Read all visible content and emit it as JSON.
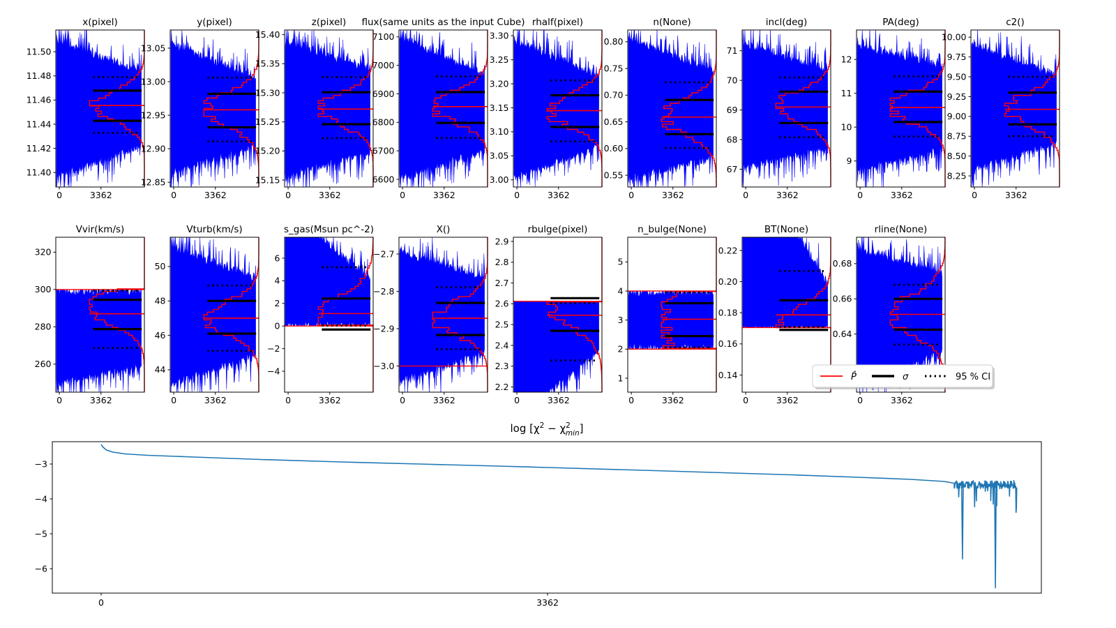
{
  "figure": {
    "background": "#ffffff"
  },
  "colors": {
    "trace": "#0000ff",
    "posterior": "#ff0000",
    "stat": "#000000",
    "chi2_line": "#1f77b4",
    "legend_edge": "#cccccc",
    "legend_shadow": "#b0b0b0"
  },
  "legend": {
    "items": [
      {
        "label": "P̂",
        "style": "red-line"
      },
      {
        "label": "σ",
        "style": "black-line"
      },
      {
        "label": "95 % CI",
        "style": "black-dotted"
      }
    ]
  },
  "chart_data": {
    "type": "line",
    "description": "Grid of MCMC/PSO parameter trace plots (blue sample traces, red marginal posterior P-hat, black sigma intervals, dotted 95% CI) plus bottom log chi2 convergence curve",
    "x_tick_labels": [
      "0",
      "3362"
    ],
    "panels": [
      {
        "title": "x(pixel)",
        "row": 0,
        "col": 0,
        "ylim": [
          11.388,
          11.518
        ],
        "ytick_vals": [
          11.4,
          11.42,
          11.44,
          11.46,
          11.48,
          11.5
        ],
        "ytick_labels": [
          "11.40",
          "11.42",
          "11.44",
          "11.46",
          "11.48",
          "11.50"
        ],
        "median": 11.4555,
        "sigma": [
          11.4428,
          11.4678
        ],
        "ci": [
          11.4328,
          11.479
        ],
        "env_top": [
          11.512,
          11.486
        ],
        "env_bot": [
          11.394,
          11.42
        ],
        "post_sigma": 0.0125
      },
      {
        "title": "y(pixel)",
        "row": 0,
        "col": 1,
        "ylim": [
          12.843,
          13.077
        ],
        "ytick_vals": [
          12.85,
          12.9,
          12.95,
          13.0,
          13.05
        ],
        "ytick_labels": [
          "12.85",
          "12.90",
          "12.95",
          "13.00",
          "13.05"
        ],
        "median": 12.958,
        "sigma": [
          12.932,
          12.982
        ],
        "ci": [
          12.911,
          13.006
        ],
        "env_top": [
          13.062,
          13.008
        ],
        "env_bot": [
          12.86,
          12.9
        ],
        "post_sigma": 0.025
      },
      {
        "title": "z(pixel)",
        "row": 0,
        "col": 2,
        "ylim": [
          15.138,
          15.408
        ],
        "ytick_vals": [
          15.15,
          15.2,
          15.25,
          15.3,
          15.35,
          15.4
        ],
        "ytick_labels": [
          "15.15",
          "15.20",
          "15.25",
          "15.30",
          "15.35",
          "15.40"
        ],
        "median": 15.272,
        "sigma": [
          15.246,
          15.301
        ],
        "ci": [
          15.222,
          15.327
        ],
        "env_top": [
          15.393,
          15.345
        ],
        "env_bot": [
          15.15,
          15.192
        ],
        "post_sigma": 0.027
      },
      {
        "title": "flux(same units as the input Cube)",
        "row": 0,
        "col": 3,
        "ylim": [
          6573,
          7124
        ],
        "ytick_vals": [
          6600,
          6700,
          6800,
          6900,
          7000,
          7100
        ],
        "ytick_labels": [
          "6600",
          "6700",
          "6800",
          "6900",
          "7000",
          "7100"
        ],
        "median": 6855,
        "sigma": [
          6798,
          6906
        ],
        "ci": [
          6745,
          6961
        ],
        "env_top": [
          7108,
          6978
        ],
        "env_bot": [
          6595,
          6692
        ],
        "post_sigma": 54
      },
      {
        "title": "rhalf(pixel)",
        "row": 0,
        "col": 4,
        "ylim": [
          2.985,
          3.312
        ],
        "ytick_vals": [
          3.0,
          3.05,
          3.1,
          3.15,
          3.2,
          3.25,
          3.3
        ],
        "ytick_labels": [
          "3.00",
          "3.05",
          "3.10",
          "3.15",
          "3.20",
          "3.25",
          "3.30"
        ],
        "median": 3.144,
        "sigma": [
          3.11,
          3.176
        ],
        "ci": [
          3.08,
          3.207
        ],
        "env_top": [
          3.298,
          3.222
        ],
        "env_bot": [
          2.998,
          3.062
        ],
        "post_sigma": 0.033
      },
      {
        "title": "n(None)",
        "row": 0,
        "col": 5,
        "ylim": [
          0.528,
          0.822
        ],
        "ytick_vals": [
          0.55,
          0.6,
          0.65,
          0.7,
          0.75,
          0.8
        ],
        "ytick_labels": [
          "0.55",
          "0.60",
          "0.65",
          "0.70",
          "0.75",
          "0.80"
        ],
        "median": 0.659,
        "sigma": [
          0.627,
          0.691
        ],
        "ci": [
          0.601,
          0.724
        ],
        "env_top": [
          0.812,
          0.752
        ],
        "env_bot": [
          0.54,
          0.576
        ],
        "post_sigma": 0.032
      },
      {
        "title": "incl(deg)",
        "row": 0,
        "col": 6,
        "ylim": [
          66.4,
          71.7
        ],
        "ytick_vals": [
          67,
          68,
          69,
          70,
          71
        ],
        "ytick_labels": [
          "67",
          "68",
          "69",
          "70",
          "71"
        ],
        "median": 69.1,
        "sigma": [
          68.56,
          69.62
        ],
        "ci": [
          68.08,
          70.1
        ],
        "env_top": [
          71.35,
          70.45
        ],
        "env_bot": [
          66.95,
          67.6
        ],
        "post_sigma": 0.53
      },
      {
        "title": "PA(deg)",
        "row": 0,
        "col": 7,
        "ylim": [
          8.23,
          12.87
        ],
        "ytick_vals": [
          9,
          10,
          11,
          12
        ],
        "ytick_labels": [
          "9",
          "10",
          "11",
          "12"
        ],
        "median": 10.58,
        "sigma": [
          10.15,
          11.05
        ],
        "ci": [
          9.72,
          11.5
        ],
        "env_top": [
          12.5,
          11.92
        ],
        "env_bot": [
          8.65,
          9.25
        ],
        "post_sigma": 0.45
      },
      {
        "title": "c2()",
        "row": 0,
        "col": 8,
        "ylim": [
          8.11,
          10.09
        ],
        "ytick_vals": [
          8.25,
          8.5,
          8.75,
          9.0,
          9.25,
          9.5,
          9.75,
          10.0
        ],
        "ytick_labels": [
          "8.25",
          "8.50",
          "8.75",
          "9.00",
          "9.25",
          "9.50",
          "9.75",
          "10.00"
        ],
        "median": 9.09,
        "sigma": [
          8.9,
          9.3
        ],
        "ci": [
          8.75,
          9.5
        ],
        "env_top": [
          9.95,
          9.56
        ],
        "env_bot": [
          8.3,
          8.62
        ],
        "post_sigma": 0.2
      },
      {
        "title": "Vvir(km/s)",
        "row": 1,
        "col": 0,
        "ylim": [
          245,
          328
        ],
        "ytick_vals": [
          260,
          280,
          300,
          320
        ],
        "ytick_labels": [
          "260",
          "280",
          "300",
          "320"
        ],
        "median": 287,
        "sigma": [
          278.8,
          294.5
        ],
        "ci": [
          268.7,
          299.4
        ],
        "env_top": [
          300.6,
          300.6
        ],
        "env_bot": [
          248,
          257.5
        ],
        "bound_top": 300,
        "hlines": [
          300
        ],
        "post_center": 290,
        "post_sigma": 9
      },
      {
        "title": "Vturb(km/s)",
        "row": 1,
        "col": 1,
        "ylim": [
          42.7,
          51.7
        ],
        "ytick_vals": [
          44,
          46,
          48,
          50
        ],
        "ytick_labels": [
          "44",
          "46",
          "48",
          "50"
        ],
        "median": 47.0,
        "sigma": [
          46.1,
          48.0
        ],
        "ci": [
          45.1,
          48.9
        ],
        "env_top": [
          51.3,
          49.5
        ],
        "env_bot": [
          43.0,
          44.7
        ],
        "post_sigma": 0.95
      },
      {
        "title": "s_gas(Msun pc^-2)",
        "row": 1,
        "col": 2,
        "ylim": [
          -5.85,
          7.85
        ],
        "ytick_vals": [
          -4,
          -2,
          0,
          2,
          4,
          6
        ],
        "ytick_labels": [
          "−4",
          "−2",
          "0",
          "2",
          "4",
          "6"
        ],
        "median": 1.1,
        "sigma": [
          -0.31,
          2.43
        ],
        "ci": [
          0.04,
          5.2
        ],
        "env_top": [
          10.8,
          4.4
        ],
        "env_bot": [
          -0.2,
          -0.2
        ],
        "bound_bot": 0,
        "hlines": [
          0
        ],
        "post_center": 0.6,
        "post_sigma": 2.0
      },
      {
        "title": "X()",
        "row": 1,
        "col": 3,
        "ylim": [
          -3.07,
          -2.655
        ],
        "ytick_vals": [
          -3.0,
          -2.9,
          -2.8,
          -2.7
        ],
        "ytick_labels": [
          "−3.0",
          "−2.9",
          "−2.8",
          "−2.7"
        ],
        "median": -2.872,
        "sigma": [
          -2.917,
          -2.831
        ],
        "ci": [
          -2.955,
          -2.789
        ],
        "env_top": [
          -2.685,
          -2.757
        ],
        "env_bot": [
          -3.046,
          -2.973
        ],
        "hlines": [
          -3.0
        ],
        "post_sigma": 0.044
      },
      {
        "title": "rbulge(pixel)",
        "row": 1,
        "col": 4,
        "ylim": [
          2.175,
          2.92
        ],
        "ytick_vals": [
          2.2,
          2.3,
          2.4,
          2.5,
          2.6,
          2.7,
          2.8,
          2.9
        ],
        "ytick_labels": [
          "2.2",
          "2.3",
          "2.4",
          "2.5",
          "2.6",
          "2.7",
          "2.8",
          "2.9"
        ],
        "median": 2.545,
        "sigma": [
          2.47,
          2.627
        ],
        "ci": [
          2.327,
          2.603
        ],
        "env_top": [
          2.64,
          2.64
        ],
        "env_bot": [
          2.02,
          2.36
        ],
        "bound_top": 2.612,
        "hlines": [
          2.612
        ],
        "post_center": 2.6,
        "post_sigma": 0.105
      },
      {
        "title": "n_bulge(None)",
        "row": 1,
        "col": 5,
        "ylim": [
          0.52,
          5.85
        ],
        "ytick_vals": [
          1,
          2,
          3,
          4,
          5
        ],
        "ytick_labels": [
          "1",
          "2",
          "3",
          "4",
          "5"
        ],
        "median": 3.03,
        "sigma": [
          2.45,
          3.58
        ],
        "ci": [
          2.06,
          3.95
        ],
        "env_top": [
          4.03,
          4.03
        ],
        "env_bot": [
          1.97,
          1.97
        ],
        "bound_top": 4,
        "bound_bot": 2,
        "hlines": [
          2,
          4
        ],
        "post_center": 3.0,
        "post_sigma": 1.6
      },
      {
        "title": "BT(None)",
        "row": 1,
        "col": 6,
        "ylim": [
          0.129,
          0.2285
        ],
        "ytick_vals": [
          0.14,
          0.16,
          0.18,
          0.2,
          0.22
        ],
        "ytick_labels": [
          "0.14",
          "0.16",
          "0.18",
          "0.20",
          "0.22"
        ],
        "median": 0.1786,
        "sigma": [
          0.169,
          0.188
        ],
        "ci": [
          0.1709,
          0.2068
        ],
        "env_top": [
          0.29,
          0.2005
        ],
        "env_bot": [
          0.168,
          0.168
        ],
        "bound_bot": 0.1705,
        "hlines": [
          0.1705
        ],
        "post_center": 0.173,
        "post_sigma": 0.011
      },
      {
        "title": "rline(None)",
        "row": 1,
        "col": 7,
        "ylim": [
          0.607,
          0.695
        ],
        "ytick_vals": [
          0.64,
          0.66,
          0.68
        ],
        "ytick_labels": [
          "0.64",
          "0.66",
          "0.68"
        ],
        "median": 0.6512,
        "sigma": [
          0.6425,
          0.66
        ],
        "ci": [
          0.634,
          0.668
        ],
        "env_top": [
          0.69,
          0.6765
        ],
        "env_bot": [
          0.61,
          0.6275
        ],
        "post_sigma": 0.0115
      }
    ],
    "chi2": {
      "title_parts": [
        {
          "t": "log [χ",
          "style": "base"
        },
        {
          "t": "2",
          "style": "sup"
        },
        {
          "t": " − χ",
          "style": "base"
        },
        {
          "t": "2",
          "style": "sup"
        },
        {
          "t": "min",
          "style": "subback"
        },
        {
          "t": "]",
          "style": "base"
        }
      ],
      "ytick_vals": [
        -3,
        -4,
        -5,
        -6
      ],
      "ytick_labels": [
        "−3",
        "−4",
        "−5",
        "−6"
      ],
      "xtick_vals": [
        0,
        3362
      ],
      "xtick_labels": [
        "0",
        "3362"
      ],
      "ylim": [
        -6.68,
        -2.36
      ],
      "xlim": [
        -368,
        7082
      ],
      "smooth_points": [
        [
          0,
          -2.44
        ],
        [
          15,
          -2.52
        ],
        [
          40,
          -2.6
        ],
        [
          90,
          -2.66
        ],
        [
          180,
          -2.71
        ],
        [
          350,
          -2.75
        ],
        [
          700,
          -2.8
        ],
        [
          1200,
          -2.87
        ],
        [
          1800,
          -2.94
        ],
        [
          2400,
          -3.0
        ],
        [
          3000,
          -3.06
        ],
        [
          3362,
          -3.1
        ],
        [
          4000,
          -3.17
        ],
        [
          4600,
          -3.24
        ],
        [
          5200,
          -3.31
        ],
        [
          5700,
          -3.38
        ],
        [
          6100,
          -3.44
        ],
        [
          6350,
          -3.5
        ],
        [
          6425,
          -3.55
        ]
      ],
      "noise_region": {
        "x_start": 6425,
        "x_end": 6898,
        "base": -3.6,
        "jitter": 0.12,
        "dip_chance": 0.06,
        "dip_depth": 0.75
      },
      "deep_spikes": [
        [
          6487,
          -5.72
        ],
        [
          6735,
          -6.55
        ]
      ]
    }
  }
}
